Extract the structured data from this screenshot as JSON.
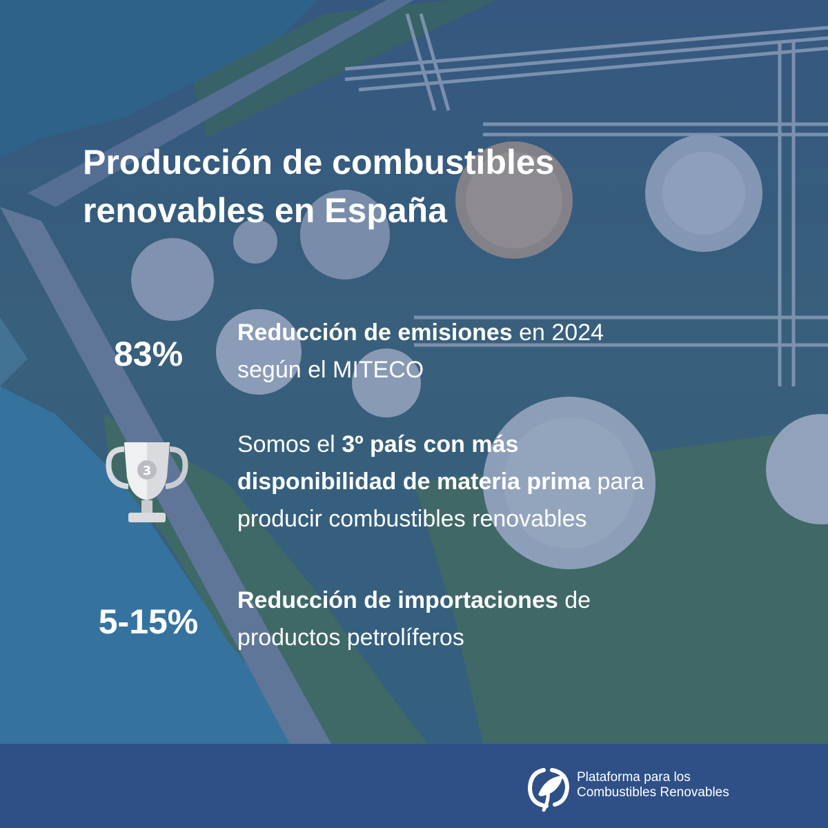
{
  "title_line1": "Producción de combustibles",
  "title_line2": "renovables en España",
  "stats": [
    {
      "number": "83%",
      "bold": "Reducción de emisiones",
      "rest": " en 2024",
      "line2": "según el MITECO"
    },
    {
      "icon": "trophy-icon",
      "trophy_label": "3",
      "pre": "Somos el ",
      "bold1": "3º país con más",
      "bold2": "disponibilidad de materia prima",
      "rest2": " para",
      "line3": "producir combustibles renovables"
    },
    {
      "number": "5-15%",
      "bold": "Reducción de importaciones",
      "rest": " de",
      "line2": "productos petrolíferos"
    }
  ],
  "footer": {
    "logo_line1": "Plataforma para los",
    "logo_line2": "Combustibles Renovables"
  },
  "colors": {
    "footer_bg": "#2f5087",
    "tint": "#2c4e82",
    "text": "#ffffff"
  }
}
